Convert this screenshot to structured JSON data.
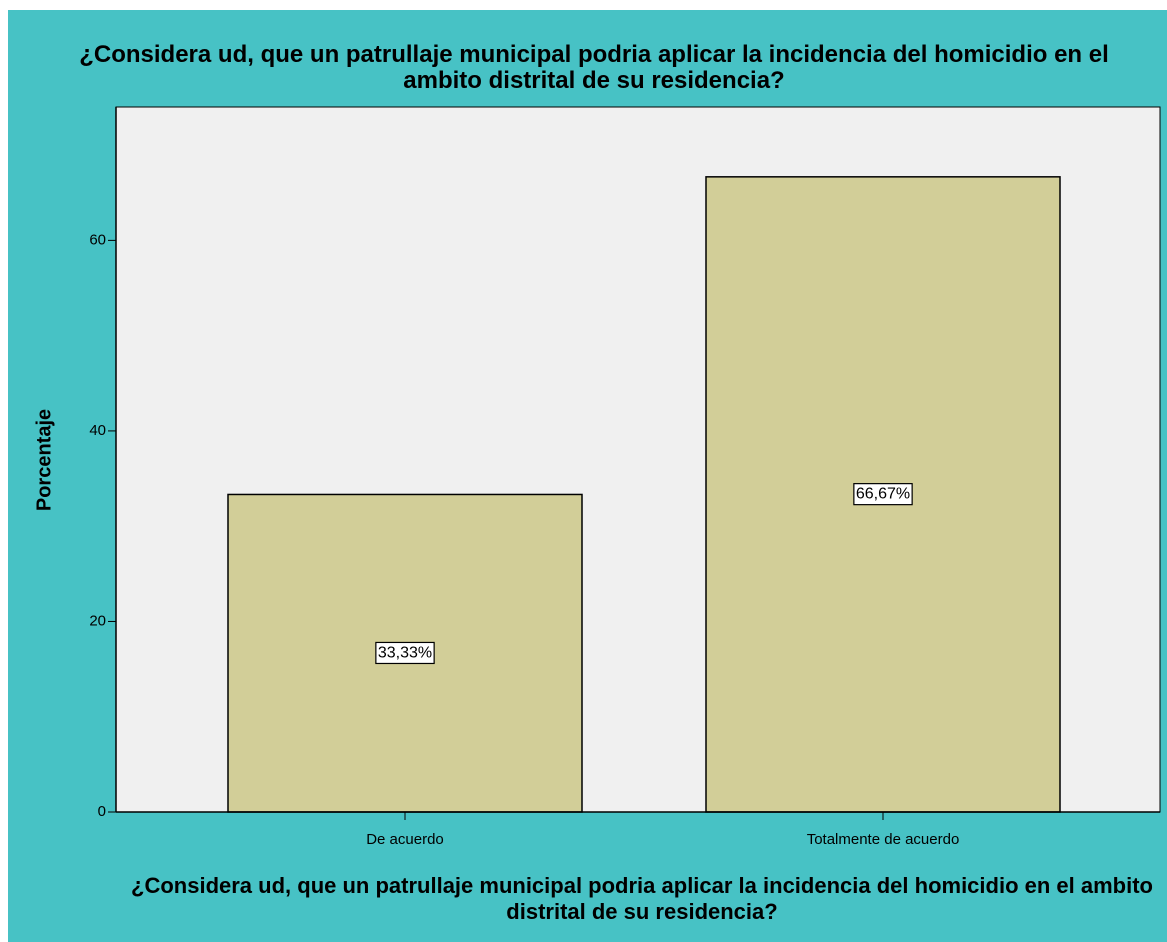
{
  "chart_data": {
    "type": "bar",
    "title": "¿Considera ud, que un patrullaje municipal podria aplicar la incidencia del homicidio en el ambito distrital de su residencia?",
    "x_label": "¿Considera ud, que un patrullaje municipal podria aplicar la incidencia del homicidio en el ambito distrital de su residencia?",
    "y_label": "Porcentaje",
    "categories": [
      "De acuerdo",
      "Totalmente de acuerdo"
    ],
    "values": [
      33.33,
      66.67
    ],
    "value_labels": [
      "33,33%",
      "66,67%"
    ],
    "color": "#d2ce98",
    "ylim": [
      0,
      74
    ],
    "yticks": [
      0,
      20,
      40,
      60
    ],
    "grid": false
  }
}
